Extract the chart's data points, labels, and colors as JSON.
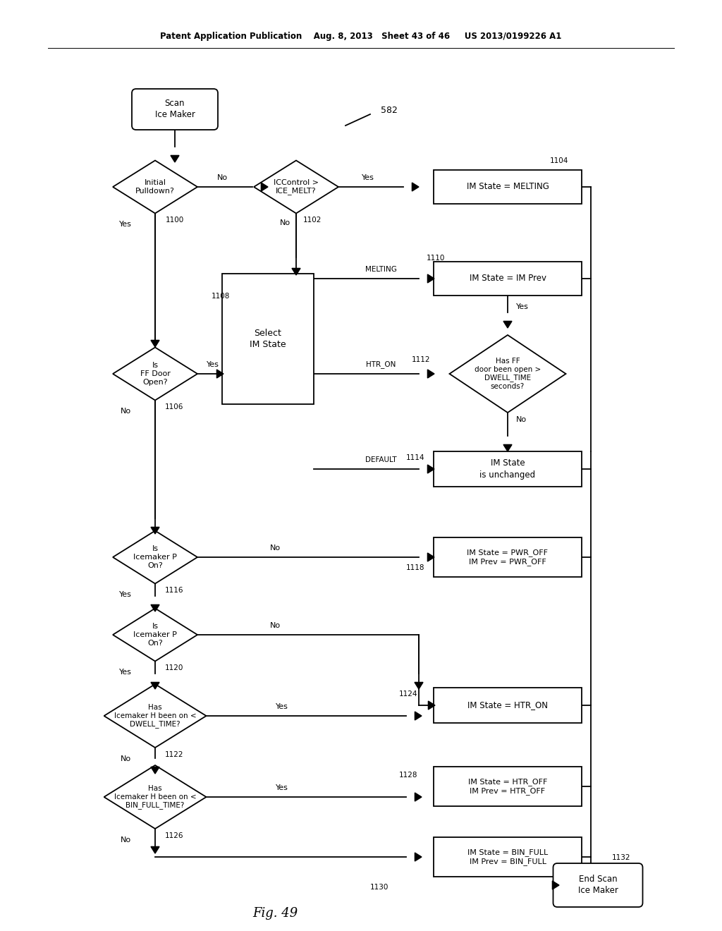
{
  "header": "Patent Application Publication    Aug. 8, 2013   Sheet 43 of 46     US 2013/0199226 A1",
  "fig_label": "Fig. 49",
  "fig_number_label": "582",
  "background_color": "#ffffff"
}
